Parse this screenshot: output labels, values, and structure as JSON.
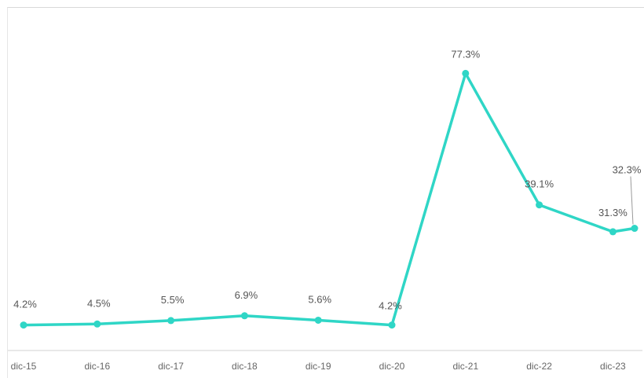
{
  "chart_data": {
    "type": "line",
    "categories": [
      "dic-15",
      "dic-16",
      "dic-17",
      "dic-18",
      "dic-19",
      "dic-20",
      "dic-21",
      "dic-22",
      "dic-23",
      ""
    ],
    "series": [
      {
        "values": [
          4.2,
          4.5,
          5.5,
          6.9,
          5.6,
          4.2,
          77.3,
          39.1,
          31.3,
          32.3
        ],
        "labels": [
          "4.2%",
          "4.5%",
          "5.5%",
          "6.9%",
          "5.6%",
          "4.2%",
          "77.3%",
          "39.1%",
          "31.3%",
          "32.3%"
        ],
        "color": "#2fd6c6"
      }
    ],
    "title": "",
    "xlabel": "",
    "ylabel": "",
    "ylim": [
      0,
      85
    ],
    "grid": false,
    "legend": "none"
  }
}
